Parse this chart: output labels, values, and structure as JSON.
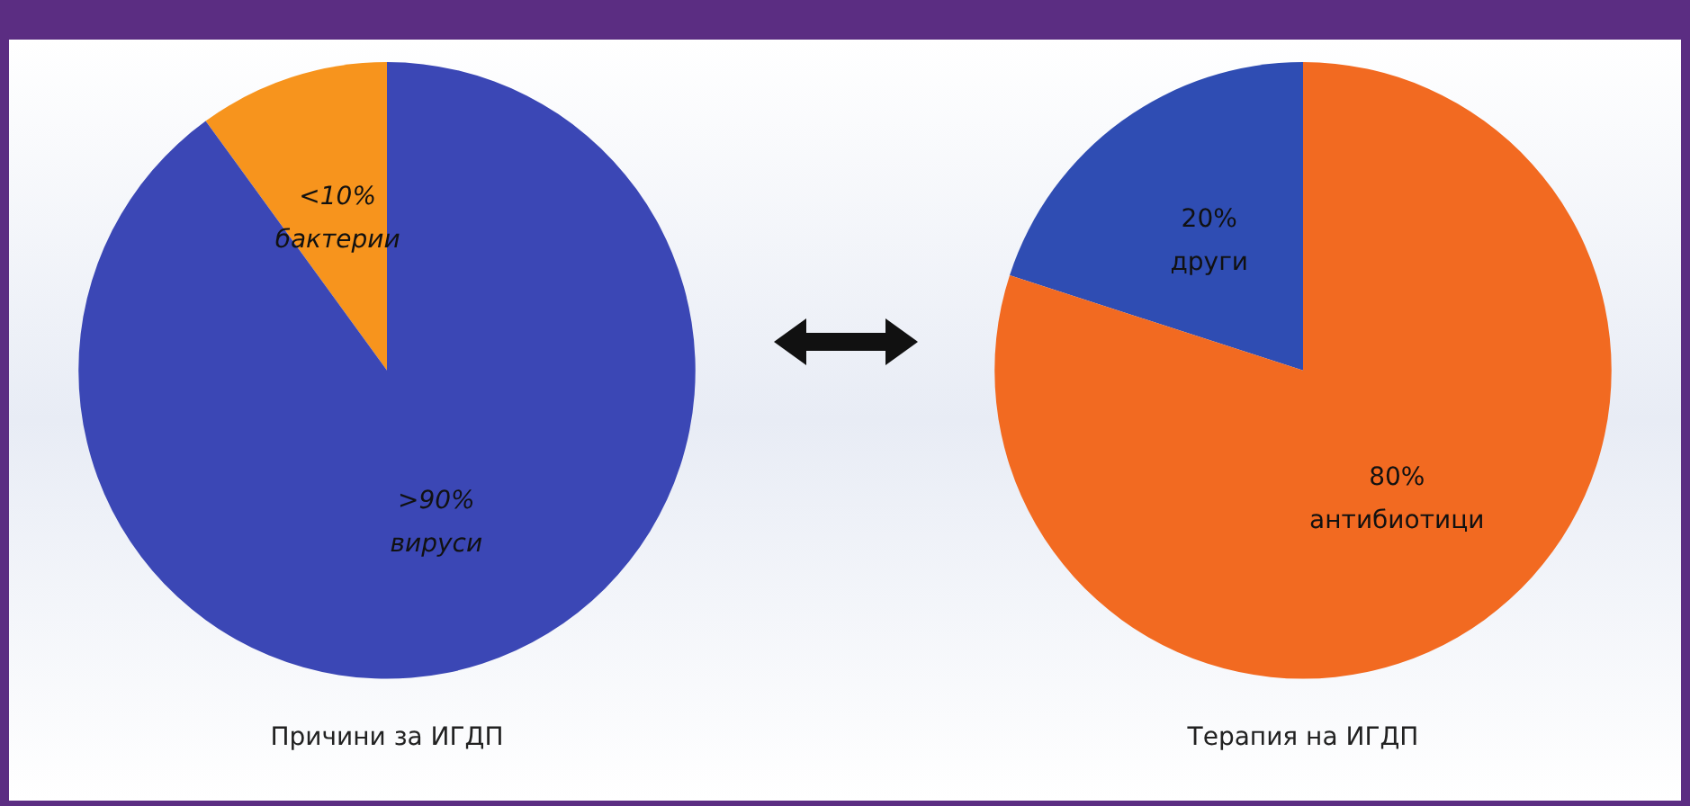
{
  "chart_data": [
    {
      "type": "pie",
      "title": "Причини за ИГДП",
      "categories": [
        "бактерии",
        "вируси"
      ],
      "values": [
        10,
        90
      ],
      "value_labels": [
        "<10%",
        ">90%"
      ],
      "colors": [
        "#f7941d",
        "#3b47b5"
      ]
    },
    {
      "type": "pie",
      "title": "Терапия на ИГДП",
      "categories": [
        "други",
        "антибиотици"
      ],
      "values": [
        20,
        80
      ],
      "value_labels": [
        "20%",
        "80%"
      ],
      "colors": [
        "#2f4db3",
        "#f26a21"
      ]
    }
  ]
}
